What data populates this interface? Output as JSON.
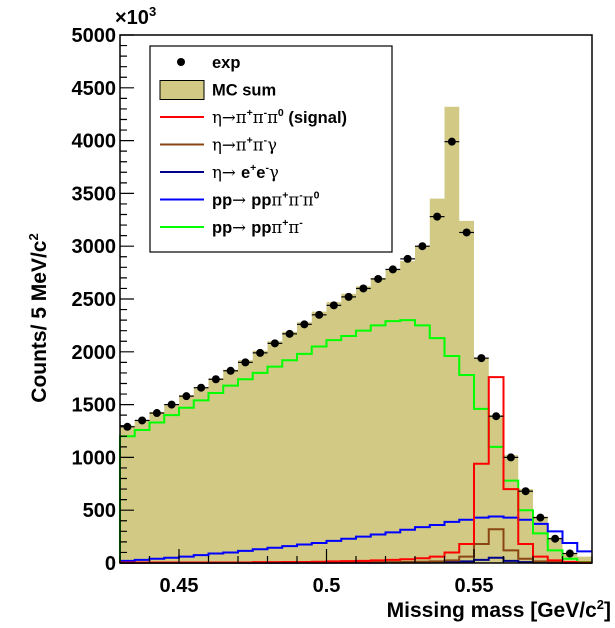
{
  "chart_data": {
    "type": "histogram",
    "xlabel": "Missing mass [GeV/c",
    "xlabel_sup": "2",
    "xlabel_end": "]",
    "ylabel": "Counts/ 5 MeV/c",
    "ylabel_sup": "2",
    "y_multiplier_base": "×10",
    "y_multiplier_exp": "3",
    "xlim": [
      0.43,
      0.59
    ],
    "ylim": [
      0,
      5000
    ],
    "x_ticks": [
      {
        "value": 0.45,
        "label": "0.45"
      },
      {
        "value": 0.5,
        "label": "0.5"
      },
      {
        "value": 0.55,
        "label": "0.55"
      }
    ],
    "y_ticks": [
      {
        "value": 0,
        "label": "0"
      },
      {
        "value": 500,
        "label": "500"
      },
      {
        "value": 1000,
        "label": "1000"
      },
      {
        "value": 1500,
        "label": "1500"
      },
      {
        "value": 2000,
        "label": "2000"
      },
      {
        "value": 2500,
        "label": "2500"
      },
      {
        "value": 3000,
        "label": "3000"
      },
      {
        "value": 3500,
        "label": "3500"
      },
      {
        "value": 4000,
        "label": "4000"
      },
      {
        "value": 4500,
        "label": "4500"
      },
      {
        "value": 5000,
        "label": "5000"
      }
    ],
    "bin_edges": [
      0.43,
      0.435,
      0.44,
      0.445,
      0.45,
      0.455,
      0.46,
      0.465,
      0.47,
      0.475,
      0.48,
      0.485,
      0.49,
      0.495,
      0.5,
      0.505,
      0.51,
      0.515,
      0.52,
      0.525,
      0.53,
      0.535,
      0.54,
      0.545,
      0.55,
      0.555,
      0.56,
      0.565,
      0.57,
      0.575,
      0.58,
      0.585,
      0.59
    ],
    "legend_position": "top-left",
    "series": [
      {
        "key": "exp",
        "kind": "points",
        "color": "#000000",
        "values": [
          1290,
          1350,
          1420,
          1500,
          1580,
          1660,
          1740,
          1820,
          1900,
          1990,
          2080,
          2170,
          2260,
          2350,
          2440,
          2520,
          2600,
          2690,
          2780,
          2880,
          3000,
          3280,
          3990,
          3130,
          1940,
          1390,
          1000,
          680,
          430,
          230,
          90,
          null
        ]
      },
      {
        "key": "mc_sum",
        "kind": "filled",
        "color": "#d1c984",
        "values": [
          1300,
          1350,
          1430,
          1500,
          1590,
          1660,
          1750,
          1830,
          1920,
          2010,
          2100,
          2190,
          2280,
          2380,
          2470,
          2550,
          2620,
          2700,
          2780,
          2860,
          3000,
          3450,
          4320,
          3240,
          1940,
          1400,
          1020,
          700,
          440,
          240,
          90,
          60
        ]
      },
      {
        "key": "signal",
        "kind": "line",
        "color": "#ff0000",
        "values": [
          5,
          5,
          5,
          5,
          5,
          5,
          5,
          5,
          5,
          8,
          8,
          10,
          10,
          12,
          15,
          18,
          20,
          25,
          30,
          35,
          45,
          60,
          100,
          180,
          940,
          1760,
          700,
          180,
          60,
          25,
          10,
          5
        ]
      },
      {
        "key": "eta_pipig",
        "kind": "line",
        "color": "#8b4513",
        "values": [
          2,
          2,
          2,
          2,
          2,
          2,
          2,
          2,
          3,
          3,
          3,
          3,
          4,
          4,
          5,
          5,
          6,
          7,
          8,
          10,
          12,
          15,
          25,
          60,
          180,
          320,
          120,
          40,
          15,
          8,
          4,
          2
        ]
      },
      {
        "key": "eta_eeg",
        "kind": "line",
        "color": "#00008b",
        "values": [
          1,
          1,
          1,
          1,
          1,
          1,
          1,
          1,
          1,
          1,
          1,
          1,
          2,
          2,
          2,
          2,
          2,
          2,
          3,
          3,
          4,
          5,
          8,
          15,
          30,
          50,
          20,
          8,
          4,
          2,
          1,
          1
        ]
      },
      {
        "key": "pp_pi3",
        "kind": "line",
        "color": "#0000ff",
        "values": [
          20,
          30,
          40,
          50,
          60,
          75,
          90,
          100,
          115,
          130,
          145,
          160,
          175,
          190,
          210,
          230,
          250,
          270,
          290,
          315,
          340,
          360,
          390,
          410,
          430,
          440,
          430,
          410,
          370,
          300,
          190,
          110
        ]
      },
      {
        "key": "pp_pi2",
        "kind": "line",
        "color": "#00ff00",
        "values": [
          1200,
          1260,
          1330,
          1400,
          1470,
          1540,
          1610,
          1680,
          1740,
          1800,
          1860,
          1920,
          1980,
          2050,
          2110,
          2150,
          2200,
          2250,
          2290,
          2300,
          2250,
          2130,
          1960,
          1780,
          1460,
          1100,
          780,
          500,
          280,
          120,
          40,
          10
        ]
      }
    ],
    "legend": [
      {
        "key": "exp",
        "parts": [
          {
            "t": "exp"
          }
        ]
      },
      {
        "key": "mc_sum",
        "parts": [
          {
            "t": "MC sum"
          }
        ]
      },
      {
        "key": "signal",
        "parts": [
          {
            "t": "η→π",
            "sym": true
          },
          {
            "t": "+",
            "sup": true
          },
          {
            "t": "π",
            "sym": true
          },
          {
            "t": "-",
            "sup": true
          },
          {
            "t": "π",
            "sym": true
          },
          {
            "t": "0",
            "sup": true
          },
          {
            "t": " (signal)"
          }
        ]
      },
      {
        "key": "eta_pipig",
        "parts": [
          {
            "t": "η→π",
            "sym": true
          },
          {
            "t": "+",
            "sup": true
          },
          {
            "t": "π",
            "sym": true
          },
          {
            "t": "-",
            "sup": true
          },
          {
            "t": "γ",
            "sym": true
          }
        ]
      },
      {
        "key": "eta_eeg",
        "parts": [
          {
            "t": "η→ ",
            "sym": true
          },
          {
            "t": "e"
          },
          {
            "t": "+",
            "sup": true
          },
          {
            "t": "e"
          },
          {
            "t": "-",
            "sup": true
          },
          {
            "t": "γ",
            "sym": true
          }
        ]
      },
      {
        "key": "pp_pi3",
        "parts": [
          {
            "t": "pp"
          },
          {
            "t": "→ ",
            "sym": true
          },
          {
            "t": "pp"
          },
          {
            "t": "π",
            "sym": true
          },
          {
            "t": "+",
            "sup": true
          },
          {
            "t": "π",
            "sym": true
          },
          {
            "t": "-",
            "sup": true
          },
          {
            "t": "π",
            "sym": true
          },
          {
            "t": "0",
            "sup": true
          }
        ]
      },
      {
        "key": "pp_pi2",
        "parts": [
          {
            "t": "pp"
          },
          {
            "t": "→ ",
            "sym": true
          },
          {
            "t": "pp"
          },
          {
            "t": "π",
            "sym": true
          },
          {
            "t": "+",
            "sup": true
          },
          {
            "t": "π",
            "sym": true
          },
          {
            "t": "-",
            "sup": true
          }
        ]
      }
    ]
  }
}
